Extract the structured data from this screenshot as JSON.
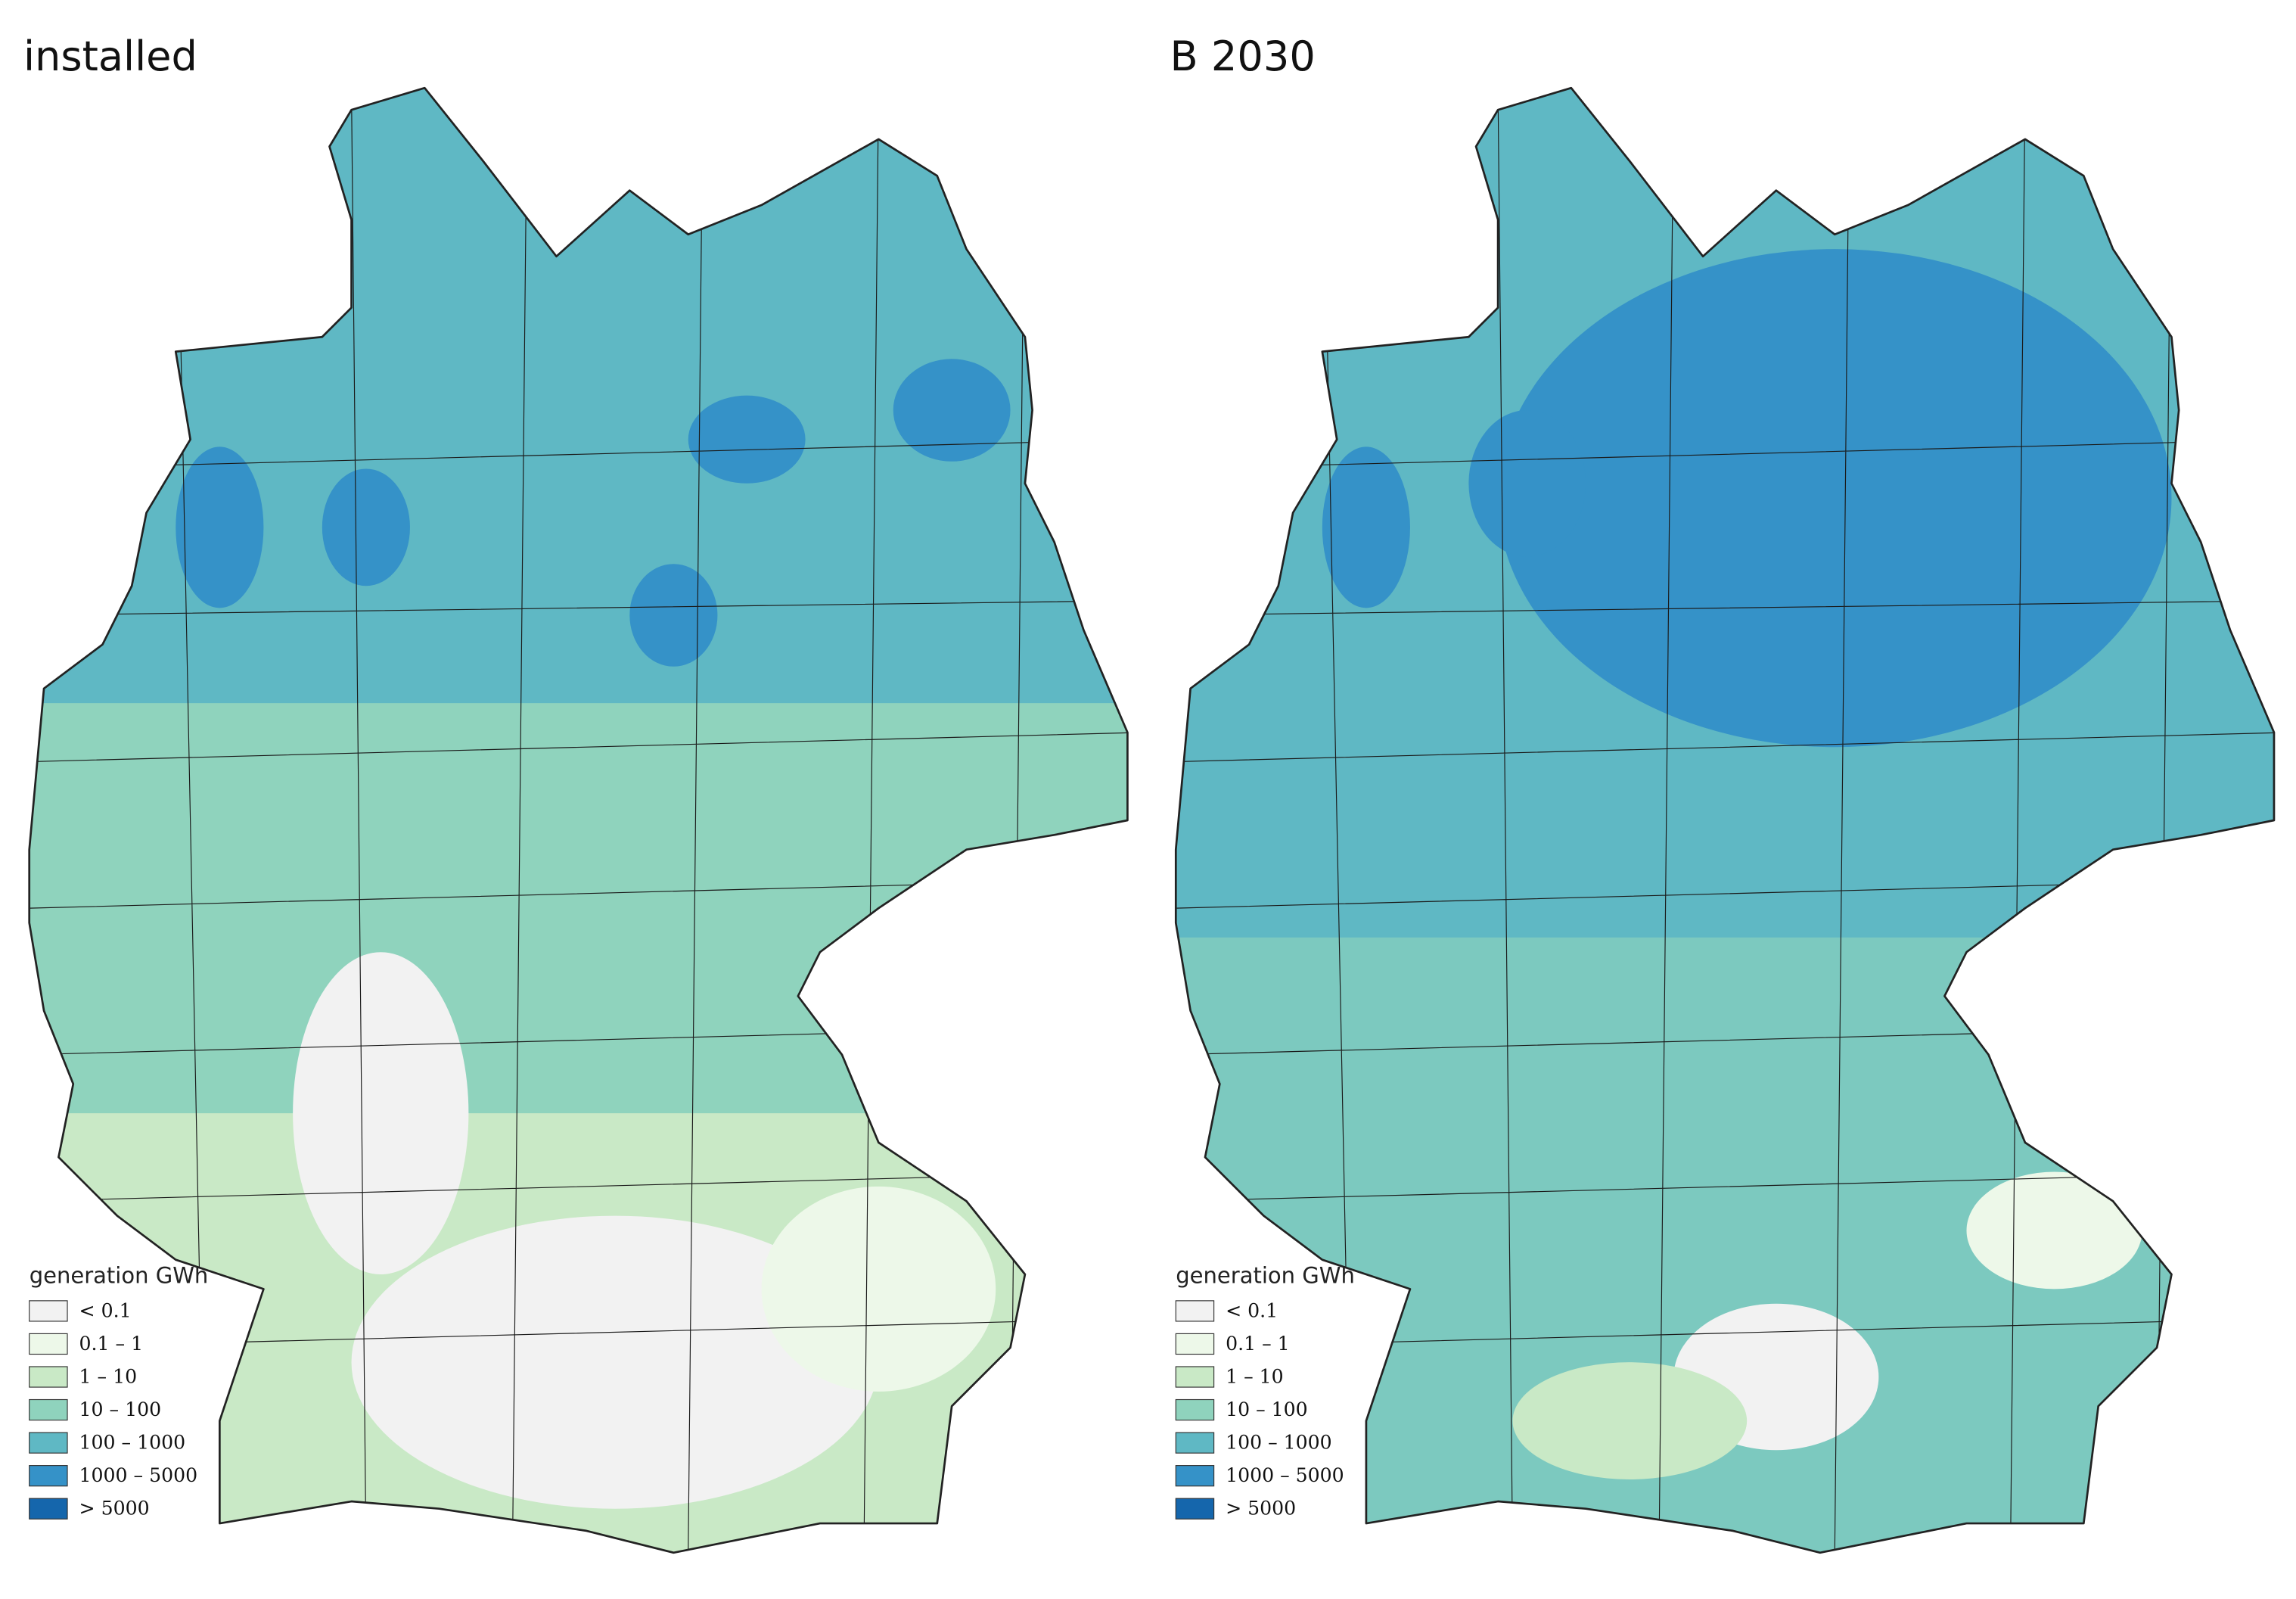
{
  "panels": [
    {
      "title": "installed",
      "legend": {
        "title": "generation GWh",
        "items": [
          {
            "label": "< 0.1",
            "color": "#f2f2f2"
          },
          {
            "label": "0.1 – 1",
            "color": "#edf8e9"
          },
          {
            "label": "1 – 10",
            "color": "#c9e9c6"
          },
          {
            "label": "10 – 100",
            "color": "#8fd3bd"
          },
          {
            "label": "100 – 1000",
            "color": "#5fb8c4"
          },
          {
            "label": "1000 – 5000",
            "color": "#3592c8"
          },
          {
            "label": "> 5000",
            "color": "#1566ac"
          }
        ]
      }
    },
    {
      "title": "B 2030",
      "legend": {
        "title": "generation GWh",
        "items": [
          {
            "label": "< 0.1",
            "color": "#f2f2f2"
          },
          {
            "label": "0.1 – 1",
            "color": "#edf8e9"
          },
          {
            "label": "1 – 10",
            "color": "#c9e9c6"
          },
          {
            "label": "10 – 100",
            "color": "#8fd3bd"
          },
          {
            "label": "100 – 1000",
            "color": "#5fb8c4"
          },
          {
            "label": "1000 – 5000",
            "color": "#3592c8"
          },
          {
            "label": "> 5000",
            "color": "#1566ac"
          }
        ]
      }
    }
  ]
}
